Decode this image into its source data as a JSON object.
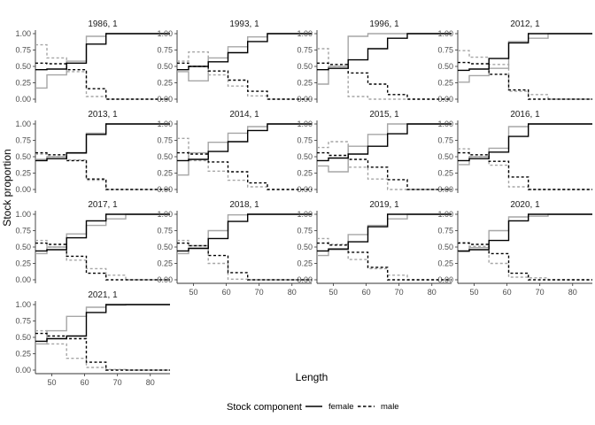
{
  "chart_data": {
    "type": "line",
    "subtype": "step",
    "xlabel": "Length",
    "ylabel": "Stock proportion",
    "x_ticks": [
      50,
      60,
      70,
      80
    ],
    "y_ticks": [
      "0.00",
      "0.25",
      "0.50",
      "0.75",
      "1.00"
    ],
    "xlim": [
      45,
      86
    ],
    "ylim": [
      0,
      1
    ],
    "grid": false,
    "legend": {
      "title": "Stock component",
      "position": "bottom",
      "entries": [
        {
          "label": "female",
          "linetype": "solid"
        },
        {
          "label": "male",
          "linetype": "dashed"
        }
      ]
    },
    "colors": {
      "fit": "#000000",
      "observed": "#a6a6a6"
    },
    "breaks": [
      45,
      48.5,
      54.5,
      60.5,
      66.5,
      72.5,
      86
    ],
    "panels": [
      {
        "title": "1986, 1",
        "fit_female": [
          0.45,
          0.46,
          0.55,
          0.84,
          1.0,
          1.0
        ],
        "obs_female": [
          0.17,
          0.37,
          0.58,
          0.96,
          1.0,
          1.0
        ]
      },
      {
        "title": "1993, 1",
        "fit_female": [
          0.45,
          0.5,
          0.57,
          0.71,
          0.88,
          1.0
        ],
        "obs_female": [
          0.42,
          0.28,
          0.63,
          0.8,
          0.95,
          1.0
        ]
      },
      {
        "title": "1996, 1",
        "fit_female": [
          0.45,
          0.47,
          0.6,
          0.77,
          0.93,
          1.0
        ],
        "obs_female": [
          0.23,
          0.5,
          0.96,
          1.0,
          1.0,
          1.0
        ]
      },
      {
        "title": "2012, 1",
        "fit_female": [
          0.44,
          0.46,
          0.62,
          0.86,
          1.0,
          1.0
        ],
        "obs_female": [
          0.26,
          0.36,
          0.47,
          0.88,
          0.93,
          1.0
        ]
      },
      {
        "title": "2013, 1",
        "fit_female": [
          0.44,
          0.47,
          0.56,
          0.84,
          1.0,
          1.0
        ],
        "obs_female": [
          0.46,
          0.5,
          0.55,
          0.86,
          1.0,
          1.0
        ]
      },
      {
        "title": "2014, 1",
        "fit_female": [
          0.44,
          0.46,
          0.58,
          0.73,
          0.9,
          1.0
        ],
        "obs_female": [
          0.22,
          0.56,
          0.72,
          0.86,
          0.96,
          1.0
        ]
      },
      {
        "title": "2015, 1",
        "fit_female": [
          0.44,
          0.48,
          0.54,
          0.66,
          0.85,
          1.0
        ],
        "obs_female": [
          0.36,
          0.27,
          0.66,
          0.84,
          1.0,
          1.0
        ]
      },
      {
        "title": "2016, 1",
        "fit_female": [
          0.44,
          0.47,
          0.57,
          0.81,
          1.0,
          1.0
        ],
        "obs_female": [
          0.38,
          0.5,
          0.63,
          0.96,
          1.0,
          1.0
        ]
      },
      {
        "title": "2017, 1",
        "fit_female": [
          0.44,
          0.46,
          0.64,
          0.9,
          1.0,
          1.0
        ],
        "obs_female": [
          0.4,
          0.5,
          0.7,
          0.83,
          0.93,
          1.0
        ]
      },
      {
        "title": "2018, 1",
        "fit_female": [
          0.44,
          0.48,
          0.63,
          0.89,
          1.0,
          1.0
        ],
        "obs_female": [
          0.4,
          0.48,
          0.75,
          0.99,
          1.0,
          1.0
        ]
      },
      {
        "title": "2019, 1",
        "fit_female": [
          0.44,
          0.47,
          0.58,
          0.81,
          1.0,
          1.0
        ],
        "obs_female": [
          0.37,
          0.46,
          0.69,
          0.83,
          0.93,
          1.0
        ]
      },
      {
        "title": "2020, 1",
        "fit_female": [
          0.44,
          0.46,
          0.6,
          0.9,
          1.0,
          1.0
        ],
        "obs_female": [
          0.43,
          0.49,
          0.75,
          0.96,
          0.97,
          1.0
        ]
      },
      {
        "title": "2021, 1",
        "fit_female": [
          0.44,
          0.48,
          0.52,
          0.88,
          1.0,
          1.0
        ],
        "obs_female": [
          0.4,
          0.6,
          0.82,
          0.96,
          0.99,
          1.0
        ]
      }
    ]
  }
}
